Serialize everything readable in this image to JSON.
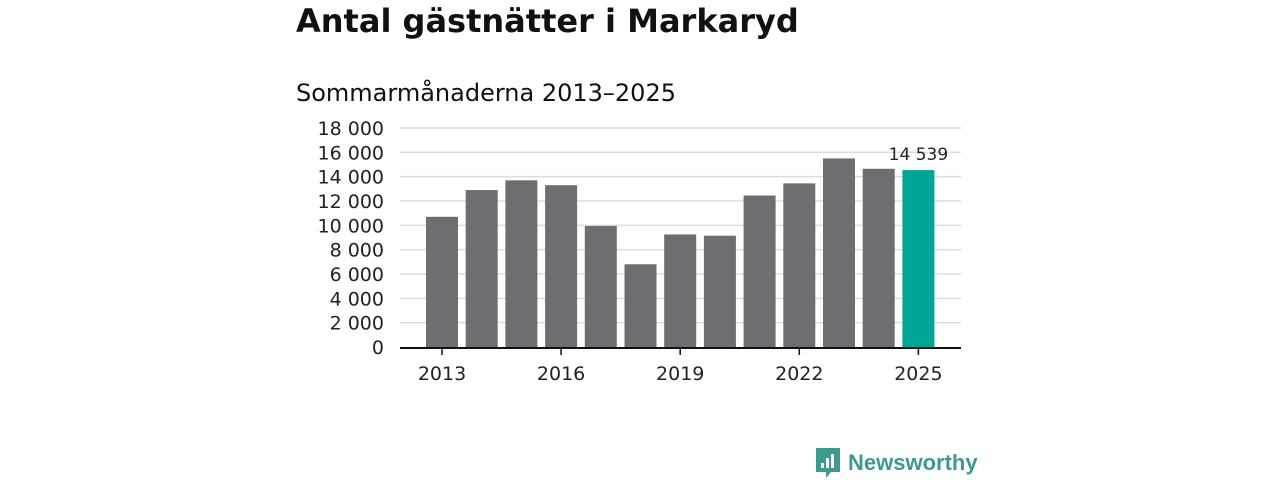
{
  "title": "Antal gästnätter i Markaryd",
  "subtitle": "Sommarmånaderna 2013–2025",
  "logo_text": "Newsworthy",
  "colors": {
    "bar": "#6e6d72",
    "highlight": "#00a596",
    "grid": "#dddddd",
    "axis": "#111111",
    "logo": "#3e9a8f"
  },
  "chart_data": {
    "type": "bar",
    "categories": [
      "2013",
      "2014",
      "2015",
      "2016",
      "2017",
      "2018",
      "2019",
      "2020",
      "2021",
      "2022",
      "2023",
      "2024",
      "2025"
    ],
    "values": [
      10700,
      12900,
      13700,
      13300,
      9950,
      6800,
      9250,
      9150,
      12450,
      13450,
      15500,
      14650,
      14539
    ],
    "ylim": [
      0,
      18000
    ],
    "yticks": [
      "0",
      "2 000",
      "4 000",
      "6 000",
      "8 000",
      "10 000",
      "12 000",
      "14 000",
      "16 000",
      "18 000"
    ],
    "xtick_labels": [
      "2013",
      "2016",
      "2019",
      "2022",
      "2025"
    ],
    "highlight": {
      "category": "2025",
      "label": "14 539"
    },
    "grid": true,
    "legend": "none"
  }
}
